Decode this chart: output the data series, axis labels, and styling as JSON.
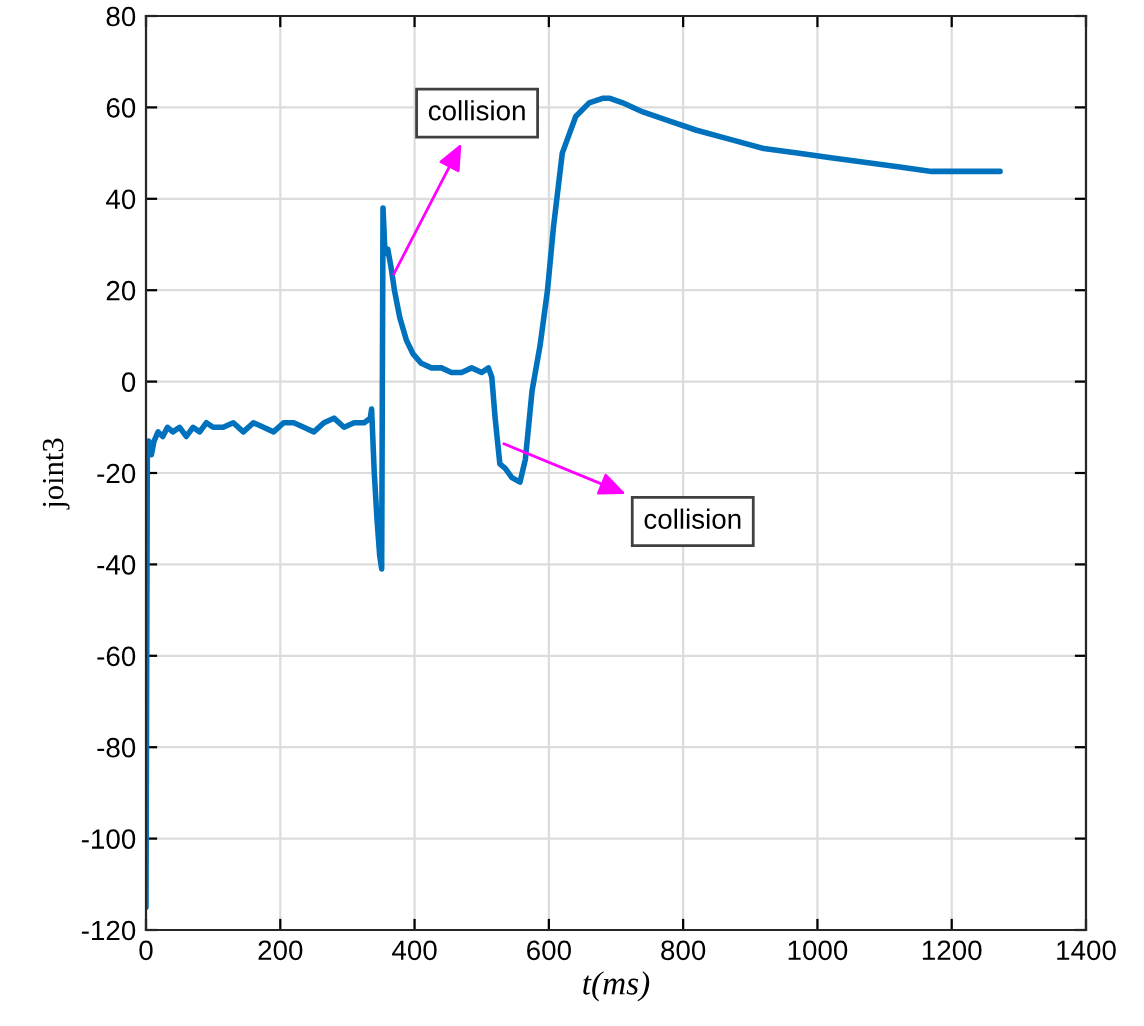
{
  "chart_data": {
    "type": "line",
    "xlabel": "t(ms)",
    "ylabel": "joint3",
    "xlim": [
      0,
      1400
    ],
    "xticks": [
      0,
      200,
      400,
      600,
      800,
      1000,
      1200,
      1400
    ],
    "ylim": [
      -120,
      80
    ],
    "yticks": [
      -120,
      -100,
      -80,
      -60,
      -40,
      -20,
      0,
      20,
      40,
      60,
      80
    ],
    "grid": true,
    "series": [
      {
        "color": "#0072bd",
        "x": [
          0,
          2,
          4,
          8,
          12,
          18,
          25,
          32,
          40,
          50,
          60,
          70,
          80,
          90,
          100,
          115,
          130,
          145,
          160,
          175,
          190,
          205,
          220,
          235,
          250,
          265,
          280,
          295,
          310,
          325,
          334,
          336,
          340,
          344,
          348,
          351,
          353,
          356,
          360,
          365,
          370,
          378,
          388,
          398,
          410,
          425,
          440,
          455,
          470,
          485,
          500,
          510,
          515,
          520,
          527,
          535,
          545,
          557,
          565,
          575,
          587,
          598,
          607,
          620,
          640,
          660,
          680,
          691,
          710,
          740,
          780,
          820,
          870,
          920,
          970,
          1020,
          1070,
          1120,
          1170,
          1220,
          1272
        ],
        "values": [
          -115,
          -15,
          -13,
          -16,
          -13,
          -11,
          -12,
          -10,
          -11,
          -10,
          -12,
          -10,
          -11,
          -9,
          -10,
          -10,
          -9,
          -11,
          -9,
          -10,
          -11,
          -9,
          -9,
          -10,
          -11,
          -9,
          -8,
          -10,
          -9,
          -9,
          -8,
          -6,
          -20,
          -30,
          -38,
          -41,
          38,
          28,
          29,
          25,
          20,
          14,
          9,
          6,
          4,
          3,
          3,
          2,
          2,
          3,
          2,
          3,
          1,
          -8,
          -18,
          -19,
          -21,
          -22,
          -17,
          -2,
          8,
          20,
          34,
          50,
          58,
          61,
          62,
          62,
          61,
          59,
          57,
          55,
          53,
          51,
          50,
          49,
          48,
          47,
          46,
          46,
          46
        ]
      }
    ],
    "annotations": [
      {
        "text": "collision",
        "x": 369,
        "y": 23.5
      },
      {
        "text": "collision",
        "x": 533,
        "y": -13.6
      }
    ]
  }
}
